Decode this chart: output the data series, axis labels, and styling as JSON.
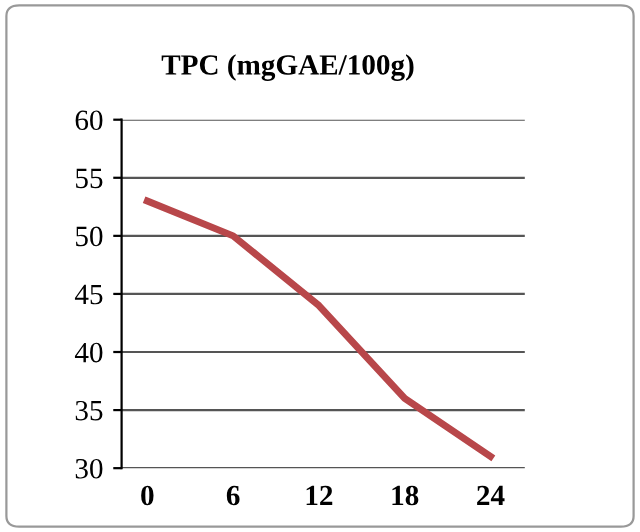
{
  "chart_data": {
    "type": "line",
    "title": "TPC (mgGAE/100g)",
    "categories": [
      "0",
      "6",
      "12",
      "18",
      "24"
    ],
    "series": [
      {
        "color": "#b8474a",
        "values": [
          53,
          50,
          44,
          36,
          31
        ]
      }
    ],
    "ylim": [
      30,
      60
    ],
    "yticks": [
      30,
      35,
      40,
      45,
      50,
      55,
      60
    ],
    "grid": "y",
    "legend": false,
    "marker": "none",
    "line_style": "solid"
  }
}
